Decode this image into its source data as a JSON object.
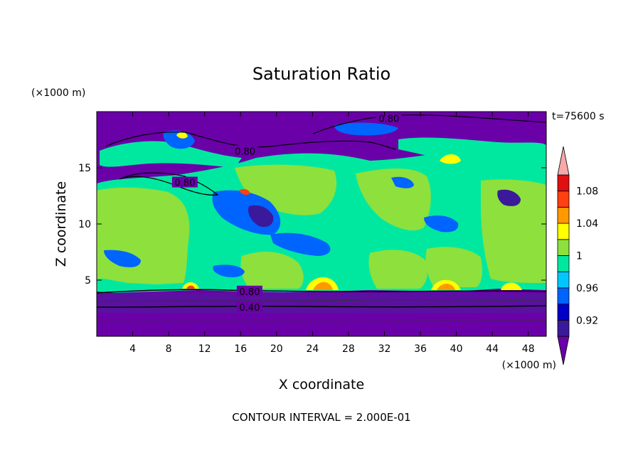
{
  "chart_data": {
    "type": "heatmap",
    "title": "Saturation Ratio",
    "xlabel": "X coordinate",
    "ylabel": "Z coordinate",
    "x_unit": "(×1000 m)",
    "y_unit": "(×1000 m)",
    "time_label": "t=75600 s",
    "footer": "CONTOUR INTERVAL = 2.000E-01",
    "xlim": [
      0,
      50
    ],
    "ylim": [
      0,
      20
    ],
    "x_ticks": [
      4,
      8,
      12,
      16,
      20,
      24,
      28,
      32,
      36,
      40,
      44,
      48
    ],
    "y_ticks": [
      5,
      10,
      15
    ],
    "colorbar": {
      "levels": [
        0.9,
        0.92,
        0.94,
        0.96,
        0.98,
        1.0,
        1.02,
        1.04,
        1.06,
        1.08,
        1.1
      ],
      "tick_labels": [
        "0.92",
        "0.96",
        "1",
        "1.04",
        "1.08"
      ],
      "tick_values": [
        0.92,
        0.96,
        1.0,
        1.04,
        1.08
      ],
      "colors": [
        "#6a00a8",
        "#3a1a9a",
        "#0000c8",
        "#0064ff",
        "#00c8ff",
        "#00e8a0",
        "#8ee03c",
        "#ffff00",
        "#ff9900",
        "#ff4010",
        "#e01010",
        "#f8a8a8"
      ]
    },
    "contour_lines": [
      {
        "label": "0.80",
        "x": 32.5,
        "z": 19.4
      },
      {
        "label": "0.80",
        "x": 16.5,
        "z": 16.5
      },
      {
        "label": "0.80",
        "x": 9.8,
        "z": 13.7
      },
      {
        "label": "0.80",
        "x": 17.0,
        "z": 4.0
      },
      {
        "label": "0.40",
        "x": 17.0,
        "z": 2.6
      }
    ]
  }
}
